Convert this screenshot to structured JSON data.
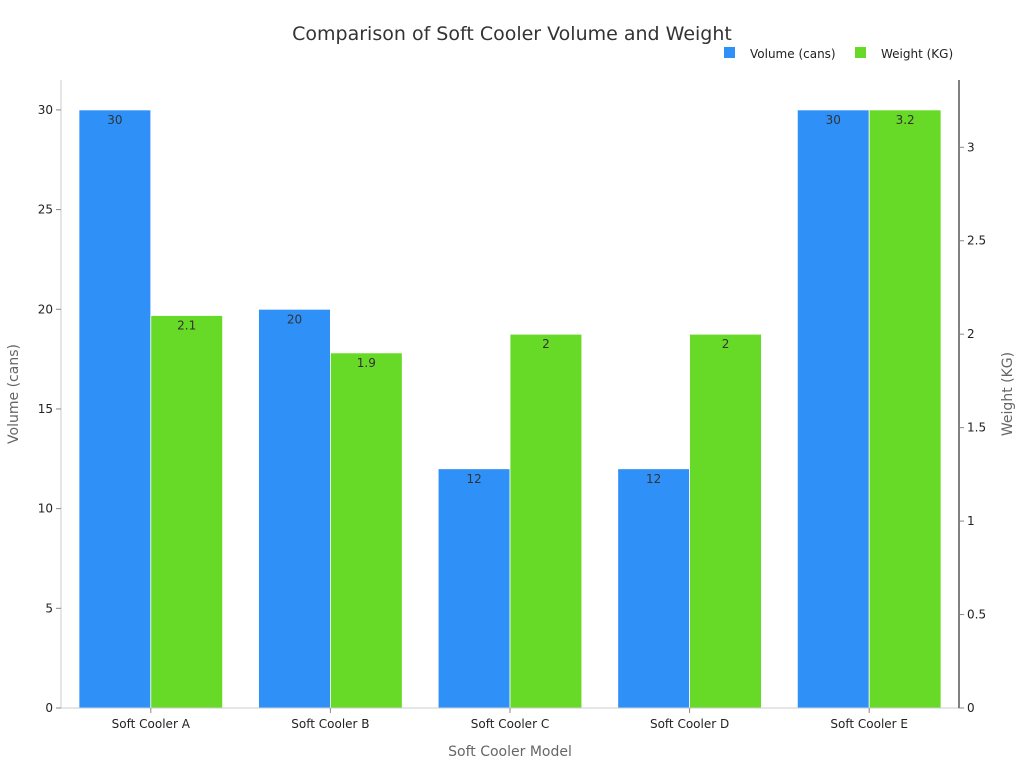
{
  "chart_data": {
    "type": "bar",
    "title": "Comparison of Soft Cooler Volume and Weight",
    "xlabel": "Soft Cooler Model",
    "categories": [
      "Soft Cooler A",
      "Soft Cooler B",
      "Soft Cooler C",
      "Soft Cooler D",
      "Soft Cooler E"
    ],
    "series": [
      {
        "name": "Volume (cans)",
        "axis": "left",
        "color": "#2f91f7",
        "values": [
          30,
          20,
          12,
          12,
          30
        ],
        "labels": [
          "30",
          "20",
          "12",
          "12",
          "30"
        ]
      },
      {
        "name": "Weight (KG)",
        "axis": "right",
        "color": "#66da26",
        "values": [
          2.1,
          1.9,
          2,
          2,
          3.2
        ],
        "labels": [
          "2.1",
          "1.9",
          "2",
          "2",
          "3.2"
        ]
      }
    ],
    "left_axis": {
      "label": "Volume (cans)",
      "ylim": [
        0,
        31.5
      ],
      "ticks": [
        0,
        5,
        10,
        15,
        20,
        25,
        30
      ],
      "tick_labels": [
        "0",
        "5",
        "10",
        "15",
        "20",
        "25",
        "30"
      ]
    },
    "right_axis": {
      "label": "Weight (KG)",
      "ylim": [
        0,
        3.36
      ],
      "ticks": [
        0,
        0.5,
        1,
        1.5,
        2,
        2.5,
        3
      ],
      "tick_labels": [
        "0",
        "0.5",
        "1",
        "1.5",
        "2",
        "2.5",
        "3"
      ]
    },
    "grid": false,
    "legend_position": "top-right"
  }
}
